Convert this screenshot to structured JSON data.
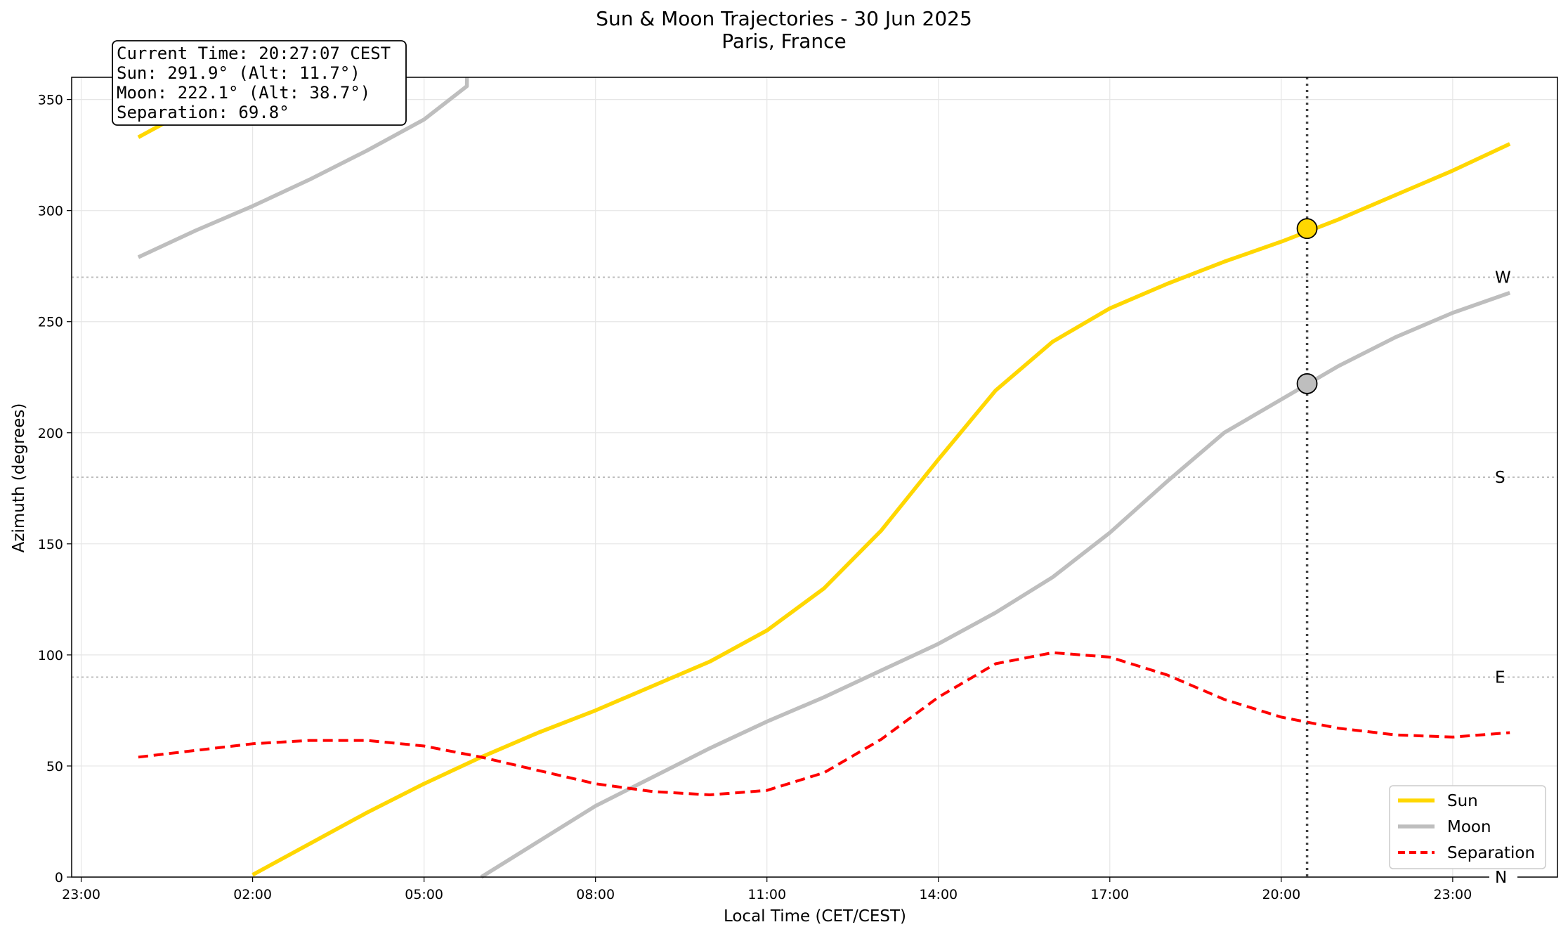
{
  "chart_data": {
    "type": "line",
    "title": "Sun & Moon Trajectories - 30 Jun 2025",
    "subtitle": "Paris, France",
    "xlabel": "Local Time (CET/CEST)",
    "ylabel": "Azimuth (degrees)",
    "xlim": [
      "2025-06-29 22:50",
      "2025-06-30 24:50"
    ],
    "ylim": [
      0,
      360
    ],
    "x_ticks": [
      "23:00",
      "02:00",
      "05:00",
      "08:00",
      "11:00",
      "14:00",
      "17:00",
      "20:00",
      "23:00"
    ],
    "y_ticks": [
      0,
      50,
      100,
      150,
      200,
      250,
      300,
      350
    ],
    "grid": true,
    "legend_position": "bottom-right",
    "series": [
      {
        "name": "Sun",
        "color": "#FFD700",
        "style": "solid",
        "points": [
          [
            "2025-06-30 00:00",
            333
          ],
          [
            "2025-06-30 00:30",
            340
          ],
          [
            "2025-06-30 01:00",
            347
          ],
          [
            "2025-06-30 01:30",
            354
          ],
          [
            "2025-06-30 01:59",
            360
          ],
          [
            "2025-06-30 02:00",
            1
          ],
          [
            "2025-06-30 03:00",
            15
          ],
          [
            "2025-06-30 04:00",
            29
          ],
          [
            "2025-06-30 05:00",
            42
          ],
          [
            "2025-06-30 06:00",
            54
          ],
          [
            "2025-06-30 07:00",
            65
          ],
          [
            "2025-06-30 08:00",
            75
          ],
          [
            "2025-06-30 09:00",
            86
          ],
          [
            "2025-06-30 10:00",
            97
          ],
          [
            "2025-06-30 11:00",
            111
          ],
          [
            "2025-06-30 12:00",
            130
          ],
          [
            "2025-06-30 13:00",
            156
          ],
          [
            "2025-06-30 14:00",
            188
          ],
          [
            "2025-06-30 15:00",
            219
          ],
          [
            "2025-06-30 16:00",
            241
          ],
          [
            "2025-06-30 17:00",
            256
          ],
          [
            "2025-06-30 18:00",
            267
          ],
          [
            "2025-06-30 19:00",
            277
          ],
          [
            "2025-06-30 20:00",
            286
          ],
          [
            "2025-06-30 21:00",
            296
          ],
          [
            "2025-06-30 22:00",
            307
          ],
          [
            "2025-06-30 23:00",
            318
          ],
          [
            "2025-06-30 24:00",
            330
          ]
        ]
      },
      {
        "name": "Moon",
        "color": "#BEBEBE",
        "style": "solid",
        "points": [
          [
            "2025-06-30 00:00",
            279
          ],
          [
            "2025-06-30 01:00",
            291
          ],
          [
            "2025-06-30 02:00",
            302
          ],
          [
            "2025-06-30 03:00",
            314
          ],
          [
            "2025-06-30 04:00",
            327
          ],
          [
            "2025-06-30 05:00",
            341
          ],
          [
            "2025-06-30 05:45",
            356
          ],
          [
            "2025-06-30 06:00",
            0
          ],
          [
            "2025-06-30 07:00",
            16
          ],
          [
            "2025-06-30 08:00",
            32
          ],
          [
            "2025-06-30 09:00",
            45
          ],
          [
            "2025-06-30 10:00",
            58
          ],
          [
            "2025-06-30 11:00",
            70
          ],
          [
            "2025-06-30 12:00",
            81
          ],
          [
            "2025-06-30 13:00",
            93
          ],
          [
            "2025-06-30 14:00",
            105
          ],
          [
            "2025-06-30 15:00",
            119
          ],
          [
            "2025-06-30 16:00",
            135
          ],
          [
            "2025-06-30 17:00",
            155
          ],
          [
            "2025-06-30 18:00",
            178
          ],
          [
            "2025-06-30 19:00",
            200
          ],
          [
            "2025-06-30 20:00",
            215
          ],
          [
            "2025-06-30 21:00",
            230
          ],
          [
            "2025-06-30 22:00",
            243
          ],
          [
            "2025-06-30 23:00",
            254
          ],
          [
            "2025-06-30 24:00",
            263
          ]
        ]
      },
      {
        "name": "Separation",
        "color": "#FF0000",
        "style": "dashed",
        "points": [
          [
            "2025-06-30 00:00",
            54
          ],
          [
            "2025-06-30 01:00",
            57
          ],
          [
            "2025-06-30 02:00",
            60
          ],
          [
            "2025-06-30 03:00",
            61.5
          ],
          [
            "2025-06-30 04:00",
            61.5
          ],
          [
            "2025-06-30 05:00",
            59
          ],
          [
            "2025-06-30 06:00",
            54
          ],
          [
            "2025-06-30 07:00",
            48
          ],
          [
            "2025-06-30 08:00",
            42
          ],
          [
            "2025-06-30 09:00",
            38.5
          ],
          [
            "2025-06-30 10:00",
            37
          ],
          [
            "2025-06-30 11:00",
            39
          ],
          [
            "2025-06-30 12:00",
            47
          ],
          [
            "2025-06-30 13:00",
            62
          ],
          [
            "2025-06-30 14:00",
            81
          ],
          [
            "2025-06-30 15:00",
            96
          ],
          [
            "2025-06-30 16:00",
            101
          ],
          [
            "2025-06-30 17:00",
            99
          ],
          [
            "2025-06-30 18:00",
            91
          ],
          [
            "2025-06-30 19:00",
            80
          ],
          [
            "2025-06-30 20:00",
            72
          ],
          [
            "2025-06-30 21:00",
            67
          ],
          [
            "2025-06-30 22:00",
            64
          ],
          [
            "2025-06-30 23:00",
            63
          ],
          [
            "2025-06-30 24:00",
            65
          ]
        ]
      }
    ],
    "reference_lines": [
      {
        "label": "N",
        "azimuth": 0
      },
      {
        "label": "E",
        "azimuth": 90
      },
      {
        "label": "S",
        "azimuth": 180
      },
      {
        "label": "W",
        "azimuth": 270
      }
    ],
    "current_time_marker": {
      "time": "2025-06-30 20:27:07"
    },
    "current_markers": [
      {
        "body": "Sun",
        "azimuth": 291.9,
        "color": "#FFD700"
      },
      {
        "body": "Moon",
        "azimuth": 222.1,
        "color": "#BEBEBE"
      }
    ],
    "info_box": [
      "Current Time: 20:27:07 CEST",
      "Sun: 291.9° (Alt: 11.7°)",
      "Moon: 222.1° (Alt: 38.7°)",
      "Separation: 69.8°"
    ]
  }
}
